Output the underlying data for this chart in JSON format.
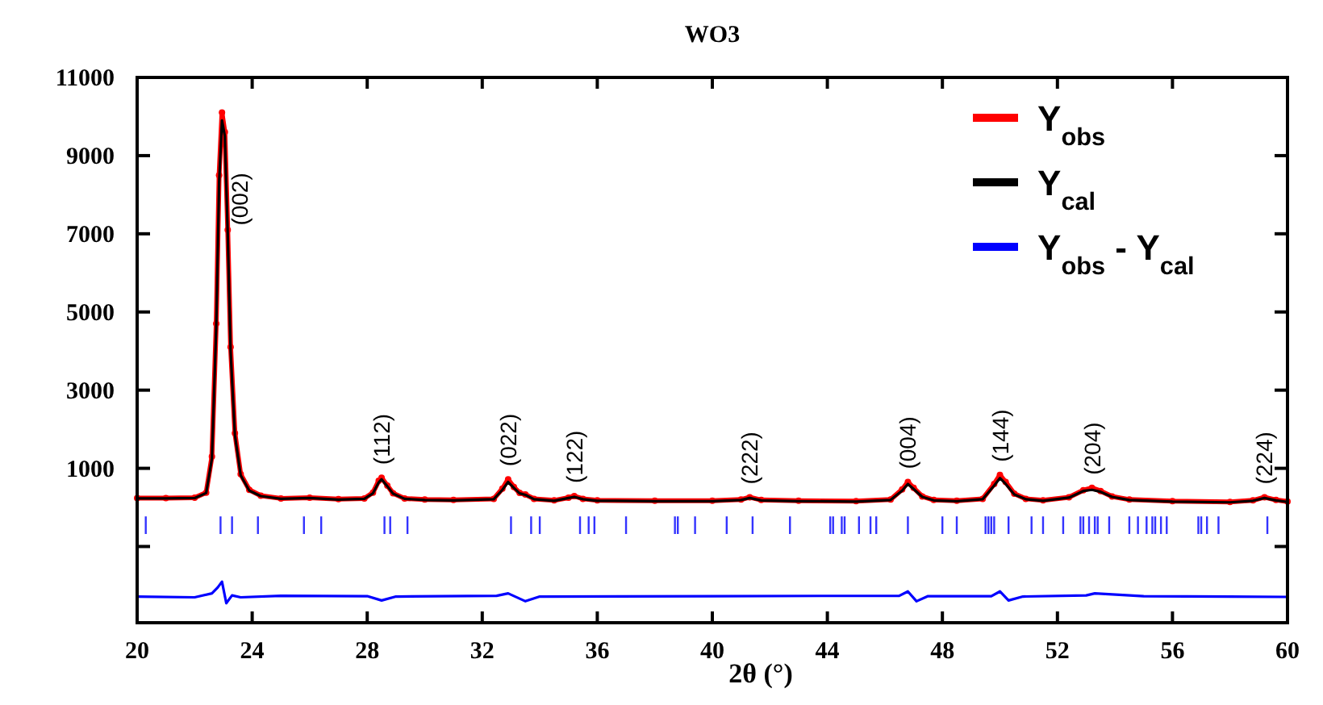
{
  "chart_data": {
    "type": "line",
    "title": "WO3",
    "xlabel": "2θ (°)",
    "xlim": [
      20,
      60
    ],
    "xticks": [
      20,
      24,
      28,
      32,
      36,
      40,
      44,
      48,
      52,
      56,
      60
    ],
    "ylim": [
      -2950,
      11000
    ],
    "yticks": [
      {
        "value": -1000,
        "label": null
      },
      1000,
      3000,
      5000,
      7000,
      9000,
      11000
    ],
    "legend": "top right",
    "grid": false,
    "x": [
      20,
      21,
      22,
      22.4,
      22.6,
      22.75,
      22.85,
      22.95,
      23.05,
      23.15,
      23.25,
      23.4,
      23.6,
      23.9,
      24.3,
      25,
      26,
      27,
      27.9,
      28.2,
      28.4,
      28.5,
      28.7,
      28.9,
      29.3,
      30,
      31,
      32.4,
      32.7,
      32.9,
      33.1,
      33.3,
      33.5,
      33.8,
      34.5,
      35,
      35.2,
      35.5,
      36,
      38,
      40,
      41,
      41.3,
      41.7,
      43,
      45,
      46.2,
      46.6,
      46.8,
      47.0,
      47.3,
      47.7,
      48.5,
      49.4,
      49.8,
      50.0,
      50.2,
      50.5,
      50.9,
      51.5,
      52.4,
      52.9,
      53.2,
      53.5,
      53.9,
      54.5,
      56,
      58,
      58.8,
      59.2,
      59.6,
      60
    ],
    "series": [
      {
        "name": "Y$_{obs}$",
        "color": "#ff0000",
        "marker": "circle",
        "values": [
          240,
          240,
          250,
          380,
          1300,
          4700,
          8500,
          10100,
          9600,
          7100,
          4100,
          1900,
          850,
          450,
          300,
          230,
          250,
          210,
          230,
          380,
          680,
          760,
          560,
          360,
          230,
          200,
          190,
          220,
          480,
          720,
          520,
          370,
          330,
          220,
          180,
          250,
          290,
          220,
          180,
          170,
          170,
          200,
          260,
          190,
          170,
          160,
          200,
          460,
          650,
          500,
          280,
          190,
          170,
          220,
          600,
          830,
          650,
          350,
          220,
          180,
          260,
          440,
          500,
          420,
          280,
          200,
          160,
          140,
          180,
          260,
          190,
          150
        ]
      },
      {
        "name": "Y$_{cal}$",
        "color": "#000000",
        "values": [
          230,
          230,
          240,
          370,
          1250,
          4600,
          8300,
          9900,
          9500,
          7000,
          4000,
          1850,
          820,
          430,
          290,
          220,
          240,
          200,
          220,
          360,
          640,
          720,
          540,
          350,
          220,
          190,
          180,
          210,
          450,
          650,
          500,
          360,
          320,
          210,
          170,
          240,
          270,
          210,
          170,
          160,
          160,
          190,
          240,
          180,
          160,
          150,
          190,
          430,
          600,
          470,
          270,
          180,
          160,
          210,
          560,
          750,
          600,
          330,
          210,
          170,
          250,
          420,
          450,
          400,
          270,
          190,
          150,
          130,
          170,
          240,
          180,
          140
        ]
      },
      {
        "name": "Y$_{obs}$ - Y$_{cal}$",
        "color": "#0000ff",
        "x": [
          20,
          22,
          22.6,
          22.8,
          22.95,
          23.1,
          23.3,
          23.6,
          25,
          28,
          28.5,
          29,
          32.5,
          32.9,
          33.5,
          34,
          40,
          46.5,
          46.8,
          47.1,
          47.5,
          49.7,
          50.0,
          50.3,
          50.8,
          53,
          53.3,
          55,
          60
        ],
        "values": [
          -2280,
          -2300,
          -2200,
          -2050,
          -1900,
          -2450,
          -2250,
          -2300,
          -2260,
          -2270,
          -2380,
          -2280,
          -2260,
          -2200,
          -2400,
          -2280,
          -2270,
          -2260,
          -2150,
          -2400,
          -2270,
          -2270,
          -2150,
          -2380,
          -2280,
          -2250,
          -2200,
          -2270,
          -2290
        ]
      },
      {
        "type": "bar",
        "color": "#3333ff",
        "base": [
          -680,
          -680,
          -680,
          -680,
          -680,
          -680,
          -680,
          -680,
          -680,
          -680,
          -680,
          -680,
          -680,
          -680,
          -680,
          -680,
          -680,
          -680,
          -680,
          -680,
          -680,
          -680,
          -680,
          -680,
          -680,
          -680,
          -680,
          -680,
          -680,
          -680,
          -680,
          -680,
          -680,
          -680,
          -680,
          -680,
          -680,
          -680,
          -680,
          -680,
          -680,
          -680,
          -680,
          -680,
          -680,
          -680,
          -680,
          -680,
          -680,
          -680,
          -680,
          -680,
          -680,
          -680,
          -680,
          -680,
          -680,
          -680
        ],
        "x": [
          20.3,
          22.9,
          23.3,
          24.2,
          25.8,
          26.4,
          28.6,
          28.8,
          29.4,
          33.0,
          33.7,
          34.0,
          35.4,
          35.7,
          35.9,
          37.0,
          38.7,
          38.8,
          39.4,
          40.5,
          41.4,
          42.7,
          44.1,
          44.2,
          44.5,
          44.6,
          45.1,
          45.5,
          45.7,
          46.8,
          48.0,
          48.5,
          49.5,
          49.6,
          49.7,
          49.8,
          50.3,
          51.1,
          51.5,
          52.2,
          52.8,
          52.9,
          53.1,
          53.3,
          53.4,
          53.8,
          54.5,
          54.8,
          55.1,
          55.3,
          55.4,
          55.6,
          55.8,
          56.9,
          57.0,
          57.2,
          57.6,
          59.3
        ],
        "values": [
          450,
          450,
          450,
          450,
          450,
          450,
          450,
          450,
          450,
          450,
          450,
          450,
          450,
          450,
          450,
          450,
          450,
          450,
          450,
          450,
          450,
          450,
          450,
          450,
          450,
          450,
          450,
          450,
          450,
          450,
          450,
          450,
          450,
          450,
          450,
          450,
          450,
          450,
          450,
          450,
          450,
          450,
          450,
          450,
          450,
          450,
          450,
          450,
          450,
          450,
          450,
          450,
          450,
          450,
          450,
          450,
          450,
          450
        ]
      }
    ],
    "annotations": [
      {
        "text": "(002)",
        "x": 22.95,
        "y": 10100
      },
      {
        "text": "(112)",
        "x": 28.5,
        "y": 760
      },
      {
        "text": "(022)",
        "x": 32.9,
        "y": 720
      },
      {
        "text": "(122)",
        "x": 35.2,
        "y": 290
      },
      {
        "text": "(222)",
        "x": 41.3,
        "y": 260
      },
      {
        "text": "(004)",
        "x": 46.8,
        "y": 650
      },
      {
        "text": "(144)",
        "x": 50.0,
        "y": 830
      },
      {
        "text": "(204)",
        "x": 53.2,
        "y": 500
      },
      {
        "text": "(224)",
        "x": 59.2,
        "y": 260
      }
    ]
  }
}
